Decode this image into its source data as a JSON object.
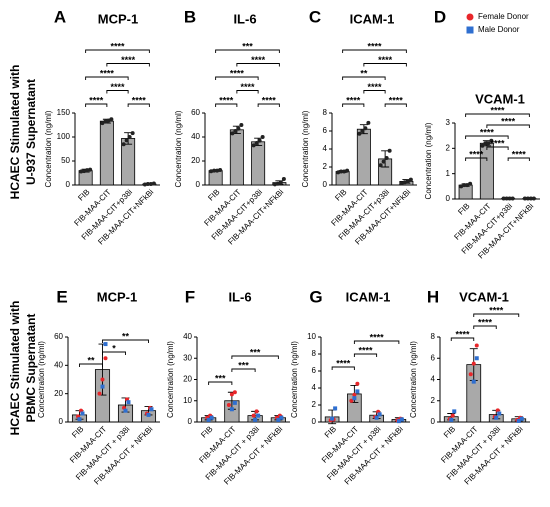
{
  "row_labels": [
    [
      "HCAEC Stimulated with",
      "U-937 Supernatant"
    ],
    [
      "HCAEC Stimulated with",
      "PBMC Supernatant"
    ]
  ],
  "legend": [
    {
      "name": "Female Donor",
      "color": "#e8262a"
    },
    {
      "name": "Male Donor",
      "color": "#2f6fd0"
    }
  ],
  "chart_data": [
    {
      "type": "bar",
      "panel": "A",
      "title": "MCP-1",
      "y_label": "Concentration (ng/ml)",
      "categories": [
        "FIB",
        "FIB-MAA-CIT",
        "FIB-MAA-CIT+p38i",
        "FIB-MAA-CIT+NFkBi"
      ],
      "values": [
        30,
        133,
        97,
        2
      ],
      "errors": [
        3,
        4,
        12,
        1
      ],
      "color": "#a9a9a9",
      "ylim": [
        0,
        150
      ],
      "yticks": [
        0,
        50,
        100,
        150
      ],
      "point_groups": [
        {
          "color": "#222222",
          "values": [
            [
              28,
              29,
              31,
              32
            ],
            [
              129,
              132,
              134,
              137
            ],
            [
              85,
              93,
              100,
              108
            ],
            [
              1,
              2,
              2,
              3
            ]
          ]
        }
      ],
      "brackets": [
        [
          0,
          1,
          "****"
        ],
        [
          1,
          2,
          "****"
        ],
        [
          2,
          3,
          "****"
        ],
        [
          0,
          2,
          "****"
        ],
        [
          1,
          3,
          "****"
        ],
        [
          0,
          3,
          "****"
        ]
      ]
    },
    {
      "type": "bar",
      "panel": "B",
      "title": "IL-6",
      "y_label": "Concentration (ng/ml)",
      "categories": [
        "FIB",
        "FIB-MAA-CIT",
        "FIB-MAA-CIT+p38i",
        "FIB-MAA-CIT+NFkBi"
      ],
      "values": [
        12,
        46,
        36,
        2
      ],
      "errors": [
        0.5,
        3,
        3,
        1.5
      ],
      "color": "#a9a9a9",
      "ylim": [
        0,
        60
      ],
      "yticks": [
        0,
        20,
        40,
        60
      ],
      "point_groups": [
        {
          "color": "#222222",
          "values": [
            [
              11.5,
              12,
              12,
              12.5
            ],
            [
              43,
              45,
              47,
              50
            ],
            [
              33,
              35,
              37,
              40
            ],
            [
              0.5,
              1,
              2,
              5
            ]
          ]
        }
      ],
      "brackets": [
        [
          0,
          1,
          "****"
        ],
        [
          1,
          2,
          "****"
        ],
        [
          2,
          3,
          "****"
        ],
        [
          0,
          2,
          "****"
        ],
        [
          1,
          3,
          "****"
        ],
        [
          0,
          3,
          "***"
        ]
      ]
    },
    {
      "type": "bar",
      "panel": "C",
      "title": "ICAM-1",
      "y_label": "Concentration (ng/ml)",
      "categories": [
        "FIB",
        "FIB-MAA-CIT",
        "FIB-MAA-CIT+p38i",
        "FIB-MAA-CIT+NFkBi"
      ],
      "values": [
        1.5,
        6.2,
        2.9,
        0.4
      ],
      "errors": [
        0.1,
        0.5,
        0.9,
        0.2
      ],
      "color": "#a9a9a9",
      "ylim": [
        0,
        8
      ],
      "yticks": [
        0,
        2,
        4,
        6,
        8
      ],
      "point_groups": [
        {
          "color": "#222222",
          "values": [
            [
              1.4,
              1.5,
              1.5,
              1.6
            ],
            [
              5.7,
              6,
              6.3,
              6.9
            ],
            [
              2.2,
              2.6,
              3,
              3.8
            ],
            [
              0.2,
              0.3,
              0.4,
              0.6
            ]
          ]
        }
      ],
      "brackets": [
        [
          0,
          1,
          "****"
        ],
        [
          1,
          2,
          "****"
        ],
        [
          2,
          3,
          "****"
        ],
        [
          0,
          2,
          "**"
        ],
        [
          1,
          3,
          "****"
        ],
        [
          0,
          3,
          "****"
        ]
      ]
    },
    {
      "type": "bar",
      "panel": "D",
      "title": "VCAM-1",
      "y_label": "Concentration (ng/ml)",
      "categories": [
        "FIB",
        "FIB-MAA-CIT",
        "FIB-MAA-CIT+p38i",
        "FIB-MAA-CIT+NFkBi"
      ],
      "values": [
        0.55,
        2.2,
        0.02,
        0.02
      ],
      "errors": [
        0.05,
        0.1,
        0.01,
        0.01
      ],
      "color": "#a9a9a9",
      "ylim": [
        0,
        3
      ],
      "yticks": [
        0,
        1,
        2,
        3
      ],
      "point_groups": [
        {
          "color": "#222222",
          "values": [
            [
              0.5,
              0.55,
              0.55,
              0.6
            ],
            [
              2.1,
              2.2,
              2.2,
              2.3
            ],
            [
              0.02,
              0.02,
              0.02,
              0.02
            ],
            [
              0.02,
              0.02,
              0.02,
              0.02
            ]
          ]
        }
      ],
      "brackets": [
        [
          0,
          1,
          "****"
        ],
        [
          1,
          2,
          "****"
        ],
        [
          2,
          3,
          "****"
        ],
        [
          0,
          2,
          "****"
        ],
        [
          1,
          3,
          "****"
        ],
        [
          0,
          3,
          "****"
        ]
      ]
    },
    {
      "type": "bar",
      "panel": "E",
      "title": "MCP-1",
      "y_label": "Concentration (ng/ml)",
      "categories": [
        "FIB",
        "FIB-MAA-CIT",
        "FIB-MAA-CIT + p38i",
        "FIB-MAA-CIT + NFkBi"
      ],
      "values": [
        5,
        37,
        12,
        8
      ],
      "errors": [
        3,
        18,
        5,
        3
      ],
      "color": "#a9a9a9",
      "ylim": [
        0,
        60
      ],
      "yticks": [
        0,
        20,
        40,
        60
      ],
      "point_groups": [
        {
          "color": "#e8262a",
          "values": [
            [
              4,
              8
            ],
            [
              20,
              30,
              45
            ],
            [
              10,
              16
            ],
            [
              6,
              10
            ]
          ]
        },
        {
          "color": "#2f6fd0",
          "values": [
            [
              2,
              6
            ],
            [
              25,
              55
            ],
            [
              8,
              14
            ],
            [
              5,
              9
            ]
          ]
        }
      ],
      "brackets": [
        [
          0,
          1,
          "**"
        ],
        [
          1,
          2,
          "*"
        ],
        [
          1,
          3,
          "**"
        ]
      ]
    },
    {
      "type": "bar",
      "panel": "F",
      "title": "IL-6",
      "y_label": "Concentration (ng/ml)",
      "categories": [
        "FIB",
        "FIB-MAA-CIT",
        "FIB-MAA-CIT + p38i",
        "FIB-MAA-CIT + NFkBi"
      ],
      "values": [
        2,
        10,
        3,
        2
      ],
      "errors": [
        1,
        4,
        2,
        1
      ],
      "color": "#a9a9a9",
      "ylim": [
        0,
        40
      ],
      "yticks": [
        0,
        10,
        20,
        30,
        40
      ],
      "point_groups": [
        {
          "color": "#e8262a",
          "values": [
            [
              2,
              3
            ],
            [
              8,
              13,
              14
            ],
            [
              3,
              5
            ],
            [
              2,
              3
            ]
          ]
        },
        {
          "color": "#2f6fd0",
          "values": [
            [
              1,
              2
            ],
            [
              6,
              9
            ],
            [
              1,
              3
            ],
            [
              1,
              2
            ]
          ]
        }
      ],
      "brackets": [
        [
          0,
          1,
          "***"
        ],
        [
          1,
          2,
          "***"
        ],
        [
          1,
          3,
          "***"
        ]
      ]
    },
    {
      "type": "bar",
      "panel": "G",
      "title": "ICAM-1",
      "y_label": "Concentration (ng/ml)",
      "categories": [
        "FIB",
        "FIB-MAA-CIT",
        "FIB-MAA-CIT + p38i",
        "FIB-MAA-CIT + NFkBi"
      ],
      "values": [
        0.6,
        3.3,
        0.8,
        0.3
      ],
      "errors": [
        0.8,
        1,
        0.4,
        0.2
      ],
      "color": "#a9a9a9",
      "ylim": [
        0,
        10
      ],
      "yticks": [
        0,
        2,
        4,
        6,
        8,
        10
      ],
      "point_groups": [
        {
          "color": "#e8262a",
          "values": [
            [
              0.2,
              0.3
            ],
            [
              2.5,
              3.2,
              4.5
            ],
            [
              0.6,
              1.2
            ],
            [
              0.2,
              0.4
            ]
          ]
        },
        {
          "color": "#2f6fd0",
          "values": [
            [
              0.4,
              1.6
            ],
            [
              2.8,
              3.6
            ],
            [
              0.5,
              0.9
            ],
            [
              0.1,
              0.3
            ]
          ]
        }
      ],
      "brackets": [
        [
          0,
          1,
          "****"
        ],
        [
          1,
          2,
          "****"
        ],
        [
          1,
          3,
          "****"
        ]
      ]
    },
    {
      "type": "bar",
      "panel": "H",
      "title": "VCAM-1",
      "y_label": "Concentration (ng/ml)",
      "categories": [
        "FIB",
        "FIB-MAA-CIT",
        "FIB-MAA-CIT + p38i",
        "FIB-MAA-CIT + NFkBi"
      ],
      "values": [
        0.5,
        5.4,
        0.7,
        0.3
      ],
      "errors": [
        0.3,
        1.5,
        0.4,
        0.2
      ],
      "color": "#a9a9a9",
      "ylim": [
        0,
        8
      ],
      "yticks": [
        0,
        2,
        4,
        6,
        8
      ],
      "point_groups": [
        {
          "color": "#e8262a",
          "values": [
            [
              0.3,
              0.6
            ],
            [
              4.5,
              5.5,
              7.2
            ],
            [
              0.5,
              1.1
            ],
            [
              0.2,
              0.4
            ]
          ]
        },
        {
          "color": "#2f6fd0",
          "values": [
            [
              0.2,
              1
            ],
            [
              3.8,
              6
            ],
            [
              0.4,
              0.8
            ],
            [
              0.1,
              0.3
            ]
          ]
        }
      ],
      "brackets": [
        [
          0,
          1,
          "****"
        ],
        [
          1,
          2,
          "****"
        ],
        [
          1,
          3,
          "****"
        ]
      ]
    }
  ]
}
